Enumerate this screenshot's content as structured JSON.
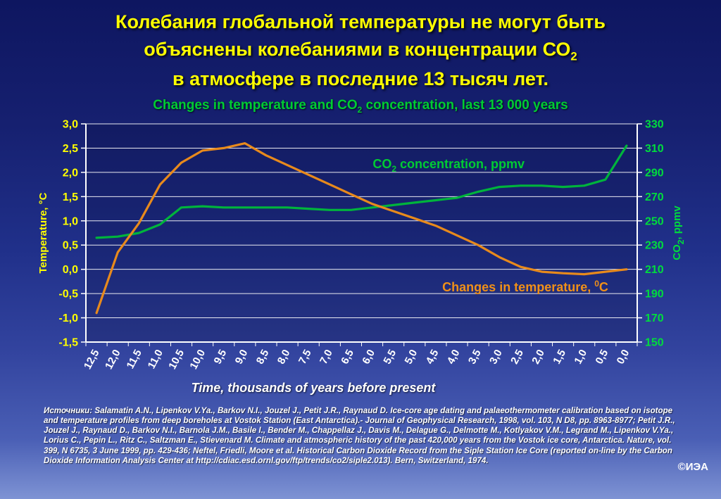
{
  "slide": {
    "title_line1": "Колебания глобальной температуры не могут быть",
    "title_line2_pre": "объяснены колебаниями в концентрации СО",
    "title_line2_sub": "2",
    "title_line3": "в атмосфере в последние 13 тысяч лет.",
    "subtitle_pre": "Changes in temperature and CO",
    "subtitle_sub": "2",
    "subtitle_post": " concentration, last 13 000 years",
    "copyright": "©ИЭА"
  },
  "sources": {
    "text": "Источники: Salamatin A.N., Lipenkov V.Ya., Barkov N.I., Jouzel J., Petit J.R., Raynaud D. Ice-core age dating and palaeothermometer calibration based on isotope and temperature profiles from deep boreholes at Vostok Station (East Antarctica).- Journal of Geophysical Research, 1998, vol. 103, N D8, pp. 8963-8977; Petit J.R., Jouzel J., Raynaud D., Barkov N.I., Barnola J.M., Basile I., Bender M., Chappellaz J., Davis M., Delague G., Delmotte M., Kotlyakov V.M., Legrand M., Lipenkov V.Ya., Lorius C., Pepin L., Ritz C., Saltzman E., Stievenard M. Climate and atmospheric history of the past 420,000 years from the Vostok ice core, Antarctica. Nature, vol. 399, N 6735, 3 June 1999, pp. 429-436; Neftel, Friedli, Moore et al. Historical Carbon Dioxide Record from the Siple Station Ice Core (reported on-line by the Carbon Dioxide Information Analysis Center at http://cdiac.esd.ornl.gov/ftp/trends/co2/siple2.013).  Bern, Switzerland, 1974."
  },
  "chart_data": {
    "type": "line",
    "title": "Changes in temperature and CO2 concentration, last 13 000 years",
    "xlabel": "Time, thousands of years before present",
    "x_categories": [
      "12,5",
      "12,0",
      "11,5",
      "11,0",
      "10,5",
      "10,0",
      "9,5",
      "9,0",
      "8,5",
      "8,0",
      "7,5",
      "7,0",
      "6,5",
      "6,0",
      "5,5",
      "5,0",
      "4,5",
      "4,0",
      "3,5",
      "3,0",
      "2,5",
      "2,0",
      "1,5",
      "1,0",
      "0,5",
      "0,0"
    ],
    "x_tick_color": "#ffffff",
    "grid_color": "#ffffff",
    "grid": true,
    "left_axis": {
      "label_parts": [
        {
          "t": "Temperature, °C"
        }
      ],
      "color": "#ffff00",
      "min": -1.5,
      "max": 3.0,
      "tick_values": [
        3.0,
        2.5,
        2.0,
        1.5,
        1.0,
        0.5,
        0.0,
        -0.5,
        -1.0,
        -1.5
      ],
      "tick_labels": [
        "3,0",
        "2,5",
        "2,0",
        "1,5",
        "1,0",
        "0,5",
        "0,0",
        "-0,5",
        "-1,0",
        "-1,5"
      ]
    },
    "right_axis": {
      "label_parts": [
        {
          "t": "CO"
        },
        {
          "t": "2",
          "shift": "sub"
        },
        {
          "t": ", ppmv"
        }
      ],
      "color": "#00dd3c",
      "min": 150,
      "max": 330,
      "tick_labels": [
        "330",
        "310",
        "290",
        "270",
        "250",
        "230",
        "210",
        "190",
        "170",
        "150"
      ]
    },
    "series": [
      {
        "name": "CO2 concentration, ppmv",
        "axis": "right",
        "color": "#00b43c",
        "values": [
          236,
          237,
          240,
          247,
          261,
          262,
          261,
          261,
          261,
          261,
          260,
          259,
          259,
          261,
          263,
          265,
          267,
          269,
          274,
          278,
          279,
          279,
          278,
          279,
          284,
          312
        ]
      },
      {
        "name": "Changes in temperature, °C",
        "axis": "left",
        "color": "#e88a1c",
        "values": [
          -0.9,
          0.35,
          0.95,
          1.75,
          2.2,
          2.45,
          2.5,
          2.6,
          2.35,
          2.15,
          1.95,
          1.75,
          1.55,
          1.35,
          1.2,
          1.05,
          0.9,
          0.7,
          0.5,
          0.25,
          0.05,
          -0.05,
          -0.08,
          -0.1,
          -0.05,
          0.0
        ]
      }
    ],
    "annotations": [
      {
        "parts": [
          {
            "t": "CO"
          },
          {
            "t": "2",
            "shift": "sub"
          },
          {
            "t": " concentration, ppmv"
          }
        ],
        "color": "#00cc33",
        "fx": 0.658,
        "fy": 0.203
      },
      {
        "parts": [
          {
            "t": "Changes in temperature, "
          },
          {
            "t": "0",
            "shift": "sup"
          },
          {
            "t": "C"
          }
        ],
        "color": "#f09018",
        "fx": 0.797,
        "fy": 0.768
      }
    ]
  }
}
